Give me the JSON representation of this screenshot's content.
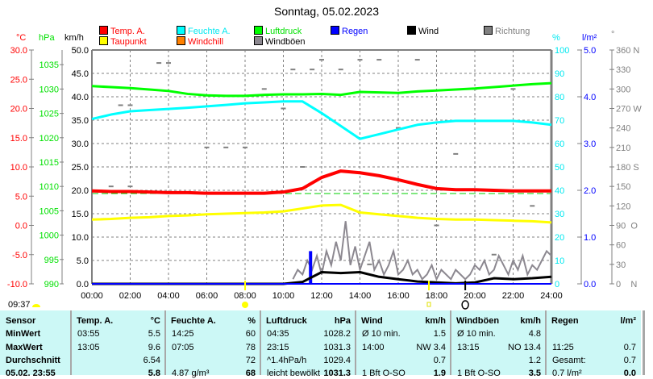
{
  "header": {
    "title": "Sonntag, 05.02.2023",
    "units": {
      "temp": "°C",
      "pressure": "hPa",
      "speed": "km/h",
      "humidity": "%",
      "rain": "l/m²",
      "direction": "°"
    },
    "legend": [
      {
        "label": "Temp. A.",
        "color": "#ff0000",
        "text_color": "#ff0000"
      },
      {
        "label": "Feuchte A.",
        "color": "#00ffff",
        "text_color": "#00e8f0"
      },
      {
        "label": "Luftdruck",
        "color": "#00ff00",
        "text_color": "#00e000"
      },
      {
        "label": "Regen",
        "color": "#0000ff",
        "text_color": "#0000ff"
      },
      {
        "label": "Wind",
        "color": "#000000",
        "text_color": "#000000"
      },
      {
        "label": "Richtung",
        "color": "#808080",
        "text_color": "#808080"
      },
      {
        "label": "Taupunkt",
        "color": "#ffff00",
        "text_color": "#ff0000"
      },
      {
        "label": "Windchill",
        "color": "#ff8000",
        "text_color": "#ff0000"
      },
      {
        "label": "Windböen",
        "color": "#8c8890",
        "text_color": "#000000"
      }
    ]
  },
  "axes": {
    "temp": [
      "30.0",
      "25.0",
      "20.0",
      "15.0",
      "10.0",
      "5.0",
      "0.0",
      "-5.0",
      "-10.0"
    ],
    "pressure": [
      "1035",
      "1030",
      "1025",
      "1020",
      "1015",
      "1010",
      "1005",
      "1000",
      "995",
      "990"
    ],
    "speed": [
      "50.0",
      "45.0",
      "40.0",
      "35.0",
      "30.0",
      "25.0",
      "20.0",
      "15.0",
      "10.0",
      "5.0",
      "0.0"
    ],
    "humidity": [
      "100",
      "90",
      "80",
      "70",
      "60",
      "50",
      "40",
      "30",
      "20",
      "10",
      "0"
    ],
    "rain": [
      "5.0",
      "4.0",
      "3.0",
      "2.0",
      "1.0",
      "0.0"
    ],
    "direction": [
      "360 N",
      "330",
      "300",
      "270 W",
      "240",
      "210",
      "180 S",
      "150",
      "120",
      "90  O",
      "60",
      "30",
      "0    N"
    ],
    "time": [
      "00:00",
      "02:00",
      "04:00",
      "06:00",
      "08:00",
      "10:00",
      "12:00",
      "14:00",
      "16:00",
      "18:00",
      "20:00",
      "22:00",
      "24:00"
    ]
  },
  "markers": {
    "current_time": "09:37"
  },
  "chart_data": {
    "type": "line",
    "x_unit": "hour of day",
    "xlim": [
      0,
      24
    ],
    "temp_ylim": [
      -10,
      30
    ],
    "pressure_ylim": [
      990,
      1038
    ],
    "speed_ylim": [
      0,
      50
    ],
    "humidity_ylim": [
      0,
      100
    ],
    "rain_ylim": [
      0,
      5
    ],
    "direction_ylim": [
      0,
      360
    ],
    "grid": true,
    "hours": [
      0,
      1,
      2,
      3,
      4,
      5,
      6,
      7,
      8,
      9,
      10,
      11,
      12,
      13,
      14,
      15,
      16,
      17,
      18,
      19,
      20,
      21,
      22,
      23,
      24
    ],
    "series": [
      {
        "name": "Temp. A.",
        "axis": "temp",
        "color": "#ff0000",
        "values": [
          5.9,
          5.8,
          5.8,
          5.7,
          5.6,
          5.6,
          5.5,
          5.5,
          5.5,
          5.5,
          5.7,
          6.3,
          8.2,
          9.3,
          9.0,
          8.5,
          7.8,
          7.0,
          6.3,
          6.1,
          6.1,
          6.0,
          5.9,
          5.9,
          5.9
        ]
      },
      {
        "name": "Taupunkt",
        "axis": "temp",
        "color": "#ffff00",
        "values": [
          1.0,
          1.1,
          1.3,
          1.4,
          1.6,
          1.7,
          1.9,
          2.0,
          2.1,
          2.2,
          2.4,
          2.9,
          3.4,
          3.5,
          2.2,
          1.9,
          1.6,
          1.3,
          1.1,
          1.0,
          1.0,
          0.9,
          0.8,
          0.7,
          0.5
        ]
      },
      {
        "name": "Feuchte A.",
        "axis": "humidity",
        "color": "#00ffff",
        "values": [
          70.5,
          72.4,
          73.8,
          74.3,
          74.8,
          75.3,
          75.9,
          76.5,
          77.2,
          77.6,
          78,
          78,
          73,
          67.5,
          62,
          64,
          66,
          68,
          69,
          69.7,
          69.7,
          69.7,
          69.7,
          69,
          68
        ]
      },
      {
        "name": "Luftdruck",
        "axis": "pressure",
        "color": "#00ff00",
        "values": [
          1030.6,
          1030.4,
          1030.2,
          1029.9,
          1029.6,
          1029.0,
          1028.7,
          1028.6,
          1028.6,
          1028.8,
          1028.9,
          1028.9,
          1029.0,
          1028.8,
          1029.4,
          1029.3,
          1029.2,
          1029.5,
          1029.7,
          1029.9,
          1030.1,
          1030.4,
          1030.7,
          1031.0,
          1031.2
        ]
      },
      {
        "name": "Wind",
        "axis": "speed",
        "color": "#000000",
        "values": [
          0,
          0,
          0,
          0,
          0,
          0,
          0,
          0,
          0,
          0,
          0,
          0.4,
          2.5,
          2.3,
          2.5,
          1.5,
          1.0,
          0.5,
          0.3,
          0.1,
          0.3,
          1.2,
          1.0,
          1.2,
          1.5
        ]
      }
    ],
    "gusts": {
      "name": "Windböen",
      "axis": "speed",
      "color": "#8c8890",
      "start_hour": 10.5,
      "step_hours": 0.25,
      "values": [
        1,
        3,
        2,
        5,
        3,
        6,
        2,
        7,
        4,
        9,
        5,
        13.4,
        4,
        8,
        3,
        6,
        9,
        3,
        5,
        2,
        4,
        7,
        2,
        3,
        5,
        2,
        3,
        1,
        2,
        4,
        1,
        3,
        2,
        1,
        3,
        2,
        1,
        2,
        4,
        3,
        5,
        2,
        3,
        6,
        4,
        2,
        5,
        3,
        6,
        2,
        4,
        3,
        5,
        7,
        6
      ]
    },
    "rain": {
      "name": "Regen",
      "axis": "rain",
      "color": "#0000ff",
      "points": [
        {
          "hour": 11.42,
          "value": 0.7
        }
      ]
    },
    "direction": {
      "name": "Richtung",
      "axis": "direction",
      "color": "#808080",
      "points": [
        [
          3.5,
          340
        ],
        [
          4.0,
          340
        ],
        [
          1.5,
          275
        ],
        [
          2.0,
          275
        ],
        [
          6.0,
          210
        ],
        [
          7.0,
          210
        ],
        [
          8.0,
          210
        ],
        [
          1.0,
          150
        ],
        [
          2.0,
          150
        ],
        [
          0.6,
          100
        ],
        [
          10.0,
          270
        ],
        [
          10.5,
          330
        ],
        [
          11.5,
          330
        ],
        [
          12.0,
          345
        ],
        [
          13.0,
          330
        ],
        [
          14.0,
          345
        ],
        [
          15.0,
          345
        ],
        [
          17.0,
          345
        ],
        [
          20.0,
          300
        ],
        [
          22.0,
          300
        ],
        [
          11.0,
          180
        ],
        [
          9.0,
          300
        ],
        [
          16,
          240
        ],
        [
          19,
          200
        ],
        [
          23,
          120
        ],
        [
          18,
          90
        ],
        [
          21,
          45
        ],
        [
          14.5,
          30
        ]
      ]
    }
  },
  "table": {
    "headers": [
      {
        "label": "Sensor",
        "unit": ""
      },
      {
        "label": "Temp. A.",
        "unit": "°C"
      },
      {
        "label": "Feuchte A.",
        "unit": "%"
      },
      {
        "label": "Luftdruck",
        "unit": "hPa"
      },
      {
        "label": "Wind",
        "unit": "km/h"
      },
      {
        "label": "Windböen",
        "unit": "km/h"
      },
      {
        "label": "Regen",
        "unit": "l/m²"
      }
    ],
    "rows": [
      {
        "label": "MinWert",
        "cells": [
          [
            "03:55",
            "5.5"
          ],
          [
            "14:25",
            "60"
          ],
          [
            "04:35",
            "1028.2"
          ],
          [
            "Ø 10 min.",
            "1.5"
          ],
          [
            "Ø 10 min.",
            "4.8"
          ],
          [
            "",
            ""
          ]
        ]
      },
      {
        "label": "MaxWert",
        "cells": [
          [
            "13:05",
            "9.6"
          ],
          [
            "07:05",
            "78"
          ],
          [
            "23:15",
            "1031.3"
          ],
          [
            "14:00",
            "NW 3.4"
          ],
          [
            "13:15",
            "NO 13.4"
          ],
          [
            "11:25",
            "0.7"
          ]
        ]
      },
      {
        "label": "Durchschnitt",
        "cells": [
          [
            "",
            "6.54"
          ],
          [
            "",
            "72"
          ],
          [
            "^1.4hPa/h",
            "1029.4"
          ],
          [
            "",
            "0.7"
          ],
          [
            "",
            "1.2"
          ],
          [
            "Gesamt:",
            "0.7"
          ]
        ]
      },
      {
        "label": "05.02. 23:55",
        "cells": [
          [
            "",
            "5.8"
          ],
          [
            "4.87 g/m³",
            "68"
          ],
          [
            "leicht bewölkt",
            "1031.3"
          ],
          [
            "1 Bft O-SO",
            "1.9"
          ],
          [
            "1 Bft O-SO",
            "3.5"
          ],
          [
            "0.7 l/m²",
            "0.0"
          ]
        ]
      }
    ]
  }
}
